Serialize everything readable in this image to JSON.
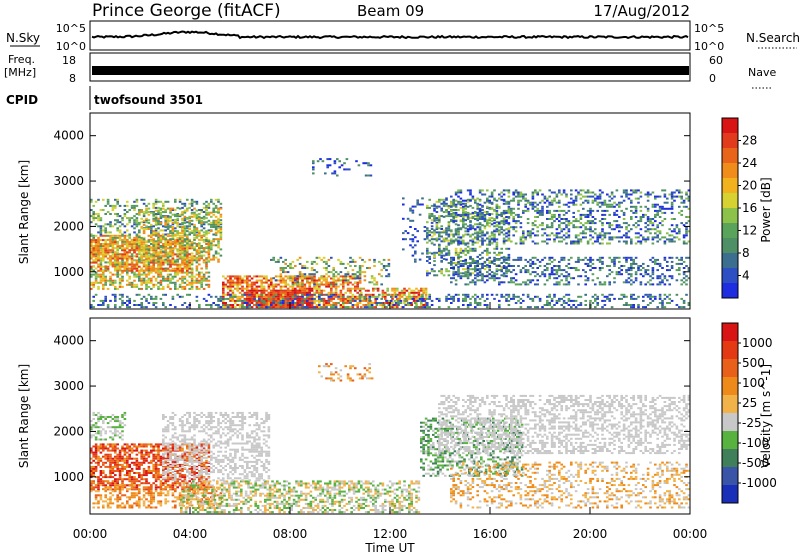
{
  "header": {
    "station": "Prince George (fitACF)",
    "beam": "Beam 09",
    "date": "17/Aug/2012"
  },
  "noise_panel": {
    "left_label": "N.Sky",
    "right_label": "N.Search",
    "tick_top": "10^5",
    "tick_bottom": "10^0"
  },
  "freq_panel": {
    "left_label": "Freq.",
    "left_unit": "[MHz]",
    "left_ticks": [
      "18",
      "8"
    ],
    "right_label": "Nave",
    "right_ticks": [
      "60",
      "0"
    ]
  },
  "cpid_panel": {
    "label": "CPID",
    "value": "twofsound 3501"
  },
  "chart_data": [
    {
      "type": "heatmap",
      "name": "power",
      "ylabel": "Slant Range [km]",
      "xlabel": "Time UT",
      "y_ticks": [
        "4000",
        "3000",
        "2000",
        "1000"
      ],
      "ylim": [
        180,
        4500
      ],
      "xlim": [
        "00:00",
        "24:00"
      ],
      "x_ticks": [
        "00:00",
        "04:00",
        "08:00",
        "12:00",
        "16:00",
        "20:00",
        "00:00"
      ],
      "colorbar": {
        "label": "Power [dB]",
        "ticks": [
          "28",
          "24",
          "20",
          "16",
          "12",
          "8",
          "4"
        ],
        "range": [
          0,
          30
        ],
        "colors": [
          "#1f2de0",
          "#2e4fc4",
          "#3c6e8f",
          "#4f8f66",
          "#5aa35a",
          "#8cc24a",
          "#d6d232",
          "#f2b21e",
          "#ef8c1a",
          "#e8641a",
          "#e23a1c",
          "#d81414"
        ]
      }
    },
    {
      "type": "heatmap",
      "name": "velocity",
      "ylabel": "Slant Range [km]",
      "xlabel": "Time UT",
      "y_ticks": [
        "4000",
        "3000",
        "2000",
        "1000"
      ],
      "ylim": [
        180,
        4500
      ],
      "xlim": [
        "00:00",
        "24:00"
      ],
      "x_ticks": [
        "00:00",
        "04:00",
        "08:00",
        "12:00",
        "16:00",
        "20:00",
        "00:00"
      ],
      "colorbar": {
        "label": "Velocity [m s^-1]",
        "ticks": [
          "1000",
          "500",
          "100",
          "25",
          "-25",
          "-100",
          "-500",
          "-1000"
        ],
        "colors": [
          "#1a2fb8",
          "#3a55a8",
          "#3f7f5a",
          "#58b240",
          "#c8c8c8",
          "#f2b24a",
          "#ee8a1a",
          "#e9601a",
          "#e33a14",
          "#d81414"
        ]
      }
    }
  ]
}
